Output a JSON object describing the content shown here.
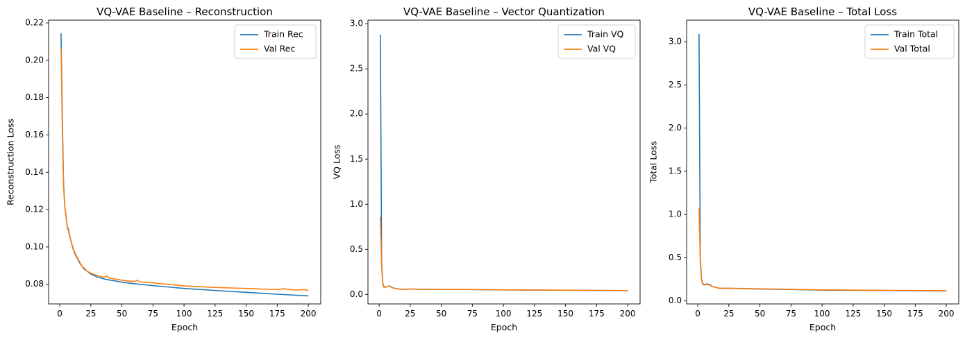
{
  "colors": {
    "train": "#1f77b4",
    "val": "#ff7f0e"
  },
  "chart_data": [
    {
      "type": "line",
      "title": "VQ-VAE Baseline – Reconstruction",
      "xlabel": "Epoch",
      "ylabel": "Reconstruction Loss",
      "xlim": [
        -9,
        210
      ],
      "ylim": [
        0.0695,
        0.2215
      ],
      "xticks": [
        0,
        25,
        50,
        75,
        100,
        125,
        150,
        175,
        200
      ],
      "yticks": [
        0.08,
        0.1,
        0.12,
        0.14,
        0.16,
        0.18,
        0.2,
        0.22
      ],
      "ytick_labels": [
        "0.08",
        "0.10",
        "0.12",
        "0.14",
        "0.16",
        "0.18",
        "0.20",
        "0.22"
      ],
      "grid": false,
      "legend": "top-right",
      "series": [
        {
          "name": "Train Rec",
          "color": "#1f77b4",
          "x": [
            1,
            2,
            3,
            4,
            5,
            6,
            7,
            8,
            10,
            12,
            14,
            16,
            18,
            20,
            22,
            25,
            30,
            35,
            40,
            50,
            60,
            75,
            100,
            125,
            150,
            175,
            200
          ],
          "y": [
            0.2145,
            0.172,
            0.135,
            0.122,
            0.117,
            0.111,
            0.1095,
            0.106,
            0.1005,
            0.0965,
            0.094,
            0.0915,
            0.0895,
            0.088,
            0.087,
            0.0855,
            0.084,
            0.083,
            0.0823,
            0.0812,
            0.0803,
            0.0793,
            0.0778,
            0.0767,
            0.0757,
            0.0747,
            0.0738
          ]
        },
        {
          "name": "Val Rec",
          "color": "#ff7f0e",
          "x": [
            1,
            2,
            3,
            4,
            5,
            6,
            7,
            8,
            10,
            12,
            14,
            16,
            18,
            20,
            22,
            25,
            28,
            30,
            33,
            35,
            38,
            40,
            45,
            50,
            55,
            60,
            62,
            65,
            70,
            75,
            80,
            90,
            100,
            110,
            125,
            140,
            150,
            160,
            175,
            180,
            190,
            195,
            200
          ],
          "y": [
            0.2065,
            0.165,
            0.133,
            0.1215,
            0.1165,
            0.1105,
            0.1085,
            0.1055,
            0.101,
            0.097,
            0.0945,
            0.092,
            0.0895,
            0.0885,
            0.087,
            0.086,
            0.0852,
            0.0848,
            0.0842,
            0.0838,
            0.0845,
            0.0833,
            0.0828,
            0.0822,
            0.0818,
            0.0815,
            0.0822,
            0.0813,
            0.081,
            0.0808,
            0.0804,
            0.0798,
            0.0792,
            0.0788,
            0.0783,
            0.078,
            0.0778,
            0.0775,
            0.0772,
            0.0776,
            0.0769,
            0.0772,
            0.0768
          ]
        }
      ]
    },
    {
      "type": "line",
      "title": "VQ-VAE Baseline – Vector Quantization",
      "xlabel": "Epoch",
      "ylabel": "VQ Loss",
      "xlim": [
        -9,
        210
      ],
      "ylim": [
        -0.105,
        3.04
      ],
      "xticks": [
        0,
        25,
        50,
        75,
        100,
        125,
        150,
        175,
        200
      ],
      "yticks": [
        0.0,
        0.5,
        1.0,
        1.5,
        2.0,
        2.5,
        3.0
      ],
      "ytick_labels": [
        "0.0",
        "0.5",
        "1.0",
        "1.5",
        "2.0",
        "2.5",
        "3.0"
      ],
      "grid": false,
      "legend": "top-right",
      "series": [
        {
          "name": "Train VQ",
          "color": "#1f77b4",
          "x": [
            1,
            2,
            3,
            4,
            5,
            6,
            7,
            8,
            9,
            10,
            12,
            14,
            16,
            18,
            20,
            22,
            25,
            30,
            50,
            75,
            100,
            125,
            150,
            175,
            200
          ],
          "y": [
            2.88,
            0.35,
            0.12,
            0.08,
            0.08,
            0.085,
            0.09,
            0.095,
            0.09,
            0.08,
            0.07,
            0.065,
            0.06,
            0.058,
            0.057,
            0.058,
            0.06,
            0.058,
            0.055,
            0.054,
            0.05,
            0.048,
            0.046,
            0.044,
            0.042
          ]
        },
        {
          "name": "Val VQ",
          "color": "#ff7f0e",
          "x": [
            1,
            2,
            3,
            4,
            5,
            6,
            7,
            8,
            9,
            10,
            12,
            14,
            16,
            18,
            20,
            22,
            25,
            30,
            50,
            75,
            100,
            125,
            150,
            175,
            200
          ],
          "y": [
            0.86,
            0.3,
            0.11,
            0.075,
            0.078,
            0.085,
            0.09,
            0.092,
            0.088,
            0.078,
            0.068,
            0.064,
            0.06,
            0.058,
            0.057,
            0.058,
            0.06,
            0.058,
            0.056,
            0.055,
            0.051,
            0.049,
            0.047,
            0.045,
            0.043
          ]
        }
      ]
    },
    {
      "type": "line",
      "title": "VQ-VAE Baseline – Total Loss",
      "xlabel": "Epoch",
      "ylabel": "Total Loss",
      "xlim": [
        -9,
        210
      ],
      "ylim": [
        -0.035,
        3.25
      ],
      "xticks": [
        0,
        25,
        50,
        75,
        100,
        125,
        150,
        175,
        200
      ],
      "yticks": [
        0.0,
        0.5,
        1.0,
        1.5,
        2.0,
        2.5,
        3.0
      ],
      "ytick_labels": [
        "0.0",
        "0.5",
        "1.0",
        "1.5",
        "2.0",
        "2.5",
        "3.0"
      ],
      "grid": false,
      "legend": "top-right",
      "series": [
        {
          "name": "Train Total",
          "color": "#1f77b4",
          "x": [
            1,
            2,
            3,
            4,
            5,
            6,
            7,
            8,
            10,
            12,
            14,
            16,
            18,
            20,
            25,
            50,
            75,
            100,
            125,
            150,
            175,
            200
          ],
          "y": [
            3.09,
            0.5,
            0.25,
            0.2,
            0.19,
            0.19,
            0.195,
            0.195,
            0.185,
            0.165,
            0.16,
            0.15,
            0.145,
            0.145,
            0.145,
            0.137,
            0.132,
            0.125,
            0.122,
            0.12,
            0.117,
            0.115
          ]
        },
        {
          "name": "Val Total",
          "color": "#ff7f0e",
          "x": [
            1,
            2,
            3,
            4,
            5,
            6,
            7,
            8,
            10,
            12,
            14,
            16,
            18,
            20,
            25,
            50,
            75,
            100,
            125,
            150,
            175,
            200
          ],
          "y": [
            1.07,
            0.45,
            0.24,
            0.19,
            0.185,
            0.185,
            0.19,
            0.19,
            0.18,
            0.165,
            0.158,
            0.15,
            0.146,
            0.146,
            0.146,
            0.14,
            0.134,
            0.128,
            0.125,
            0.122,
            0.12,
            0.118
          ]
        }
      ]
    }
  ]
}
